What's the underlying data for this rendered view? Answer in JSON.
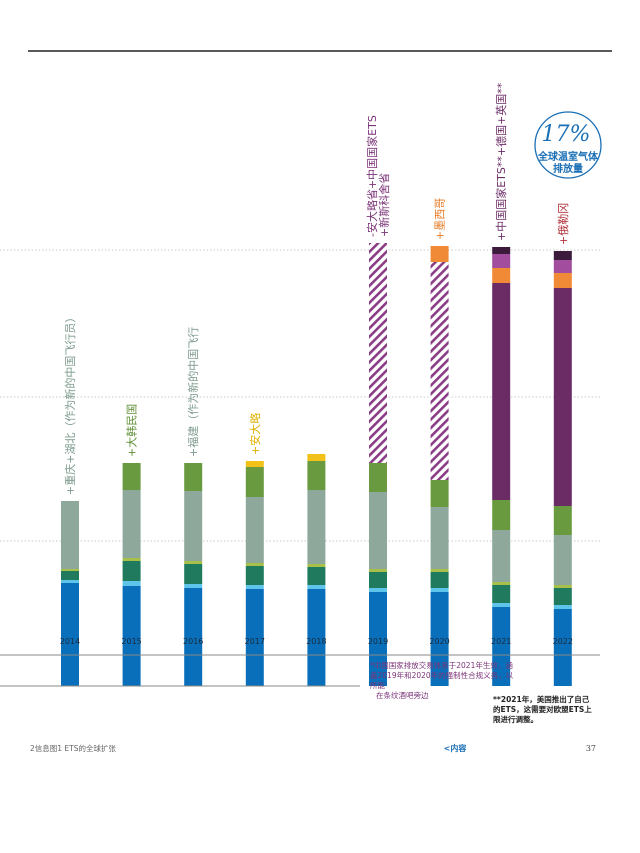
{
  "chart_data": {
    "type": "stacked_bar",
    "categories": [
      "2014",
      "2015",
      "2016",
      "2017",
      "2018",
      "2019",
      "2020",
      "2021",
      "2022"
    ],
    "ylim": [
      0,
      450
    ],
    "gridlines": [
      145,
      289,
      436
    ],
    "series": [
      {
        "color": "#0a6fba",
        "values": [
          103,
          100,
          98,
          97,
          97,
          94,
          94,
          79,
          77
        ]
      },
      {
        "color": "#5ec4ea",
        "values": [
          3,
          5,
          4,
          4,
          4,
          4,
          4,
          4,
          4
        ]
      },
      {
        "color": "#1f7a5e",
        "values": [
          9,
          20,
          20,
          19,
          18,
          16,
          16,
          18,
          17
        ]
      },
      {
        "color": "#a7c04a",
        "values": [
          2,
          3,
          3,
          3,
          3,
          3,
          3,
          3,
          3
        ]
      },
      {
        "color": "#8fa89c",
        "values": [
          68,
          68,
          70,
          66,
          74,
          77,
          62,
          52,
          50
        ]
      },
      {
        "color": "#6a9a40",
        "values": [
          0,
          27,
          28,
          30,
          29,
          29,
          27,
          30,
          29
        ]
      },
      {
        "color": "#f2c21b",
        "values": [
          0,
          0,
          0,
          6,
          7,
          0,
          0,
          0,
          0
        ]
      },
      {
        "color": "#8a3d86",
        "pattern": "hatch",
        "values": [
          0,
          0,
          0,
          0,
          0,
          220,
          218,
          0,
          0
        ]
      },
      {
        "color": "#6b2c66",
        "values": [
          0,
          0,
          0,
          0,
          0,
          0,
          0,
          217,
          218
        ]
      },
      {
        "color": "#f08a36",
        "values": [
          0,
          0,
          0,
          0,
          0,
          0,
          16,
          15,
          15
        ]
      },
      {
        "color": "#a24d9d",
        "values": [
          0,
          0,
          0,
          0,
          0,
          0,
          0,
          14,
          13
        ]
      },
      {
        "color": "#3b1a3b",
        "values": [
          0,
          0,
          0,
          0,
          0,
          0,
          0,
          7,
          9
        ]
      }
    ],
    "annotations": [
      {
        "category": "2014",
        "color": "#7d9a8c",
        "text": [
          "+重庆+湖北（作为新的中国飞行员）"
        ]
      },
      {
        "category": "2015",
        "color": "#5f8f35",
        "text": [
          "+大韩民国"
        ]
      },
      {
        "category": "2016",
        "color": "#7d9a8c",
        "text": [
          "+福建（作为新的中国飞行"
        ]
      },
      {
        "category": "2017",
        "color": "#e0b000",
        "text": [
          "+安大略"
        ]
      },
      {
        "category": "2019",
        "color": "#7b3378",
        "text": [
          "-安大略省+中国国家ETS",
          "+新斯科舍省"
        ]
      },
      {
        "category": "2020",
        "color": "#e57a25",
        "text": [
          "+墨西哥"
        ]
      },
      {
        "category": "2021",
        "color": "#6b2c66",
        "text": [
          "+中国国家ETS**+德国+英国**"
        ]
      },
      {
        "category": "2022",
        "color": "#b0303a",
        "text": [
          "+俄勒冈"
        ]
      }
    ],
    "callout": {
      "value": "17%",
      "lines": [
        "全球温室气体",
        "排放量"
      ]
    },
    "notes": [
      {
        "color": "#7b3378",
        "lines": [
          "*中国国家排放交易体系于2021年生效，涵",
          "盖2019年和2020年的强制性合规义务，以",
          "所能",
          "在条纹酒吧旁边"
        ]
      },
      {
        "color": "#222222",
        "lines": [
          "**2021年，美国推出了自己",
          "的ETS，这需要对欧盟ETS上",
          "限进行调整。"
        ]
      }
    ]
  },
  "footer": {
    "left": "2信息图1 ETS的全球扩张",
    "center": "<内容",
    "page": "37"
  }
}
